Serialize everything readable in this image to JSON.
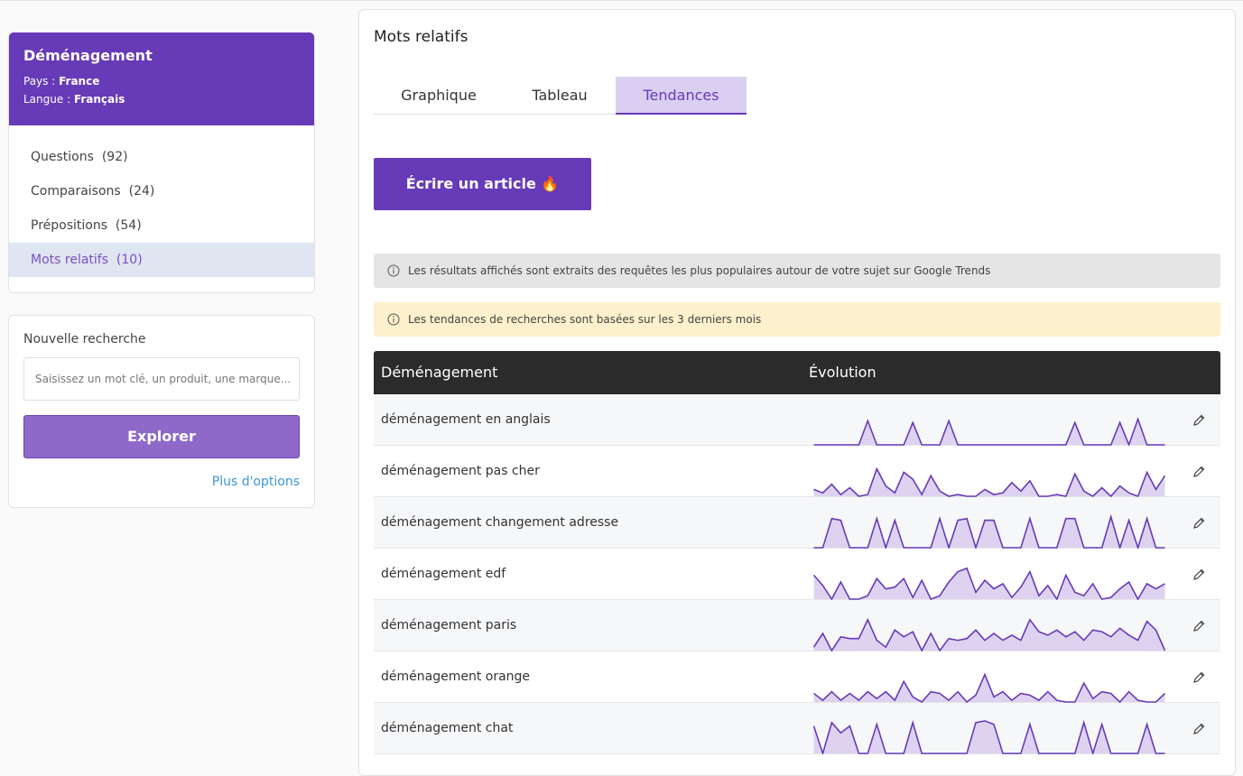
{
  "sidebar": {
    "title": "Déménagement",
    "country_label": "Pays :",
    "country": "France",
    "language_label": "Langue :",
    "language": "Français",
    "menu": [
      {
        "label": "Questions",
        "count": "(92)"
      },
      {
        "label": "Comparaisons",
        "count": "(24)"
      },
      {
        "label": "Prépositions",
        "count": "(54)"
      },
      {
        "label": "Mots relatifs",
        "count": "(10)"
      }
    ],
    "active_menu": 3
  },
  "search": {
    "title": "Nouvelle recherche",
    "placeholder": "Saisissez un mot clé, un produit, une marque...",
    "button": "Explorer",
    "link": "Plus d'options"
  },
  "main": {
    "title": "Mots relatifs",
    "tabs": [
      "Graphique",
      "Tableau",
      "Tendances"
    ],
    "active_tab": 2,
    "cta": "Écrire un article 🔥",
    "info": "Les résultats affichés sont extraits des requêtes les plus populaires autour de votre sujet sur Google Trends",
    "notice": "Les tendances de recherches sont basées sur les 3 derniers mois",
    "table": {
      "columns": [
        "Déménagement",
        "Évolution"
      ],
      "trend_ylim": [
        0,
        100
      ],
      "rows": [
        {
          "keyword": "déménagement en anglais",
          "trend": [
            0,
            0,
            0,
            0,
            0,
            0,
            70,
            0,
            0,
            0,
            0,
            65,
            0,
            0,
            0,
            70,
            0,
            0,
            0,
            0,
            0,
            0,
            0,
            0,
            0,
            0,
            0,
            0,
            0,
            65,
            0,
            0,
            0,
            0,
            65,
            0,
            75,
            0,
            0,
            0
          ]
        },
        {
          "keyword": "déménagement pas cher",
          "trend": [
            20,
            10,
            35,
            5,
            25,
            0,
            5,
            80,
            30,
            10,
            70,
            50,
            5,
            60,
            15,
            0,
            5,
            0,
            0,
            20,
            5,
            10,
            40,
            15,
            45,
            0,
            0,
            5,
            0,
            65,
            15,
            0,
            25,
            0,
            30,
            10,
            0,
            70,
            20,
            60
          ]
        },
        {
          "keyword": "déménagement changement adresse",
          "trend": [
            0,
            0,
            85,
            80,
            0,
            0,
            0,
            85,
            0,
            80,
            0,
            0,
            0,
            0,
            85,
            0,
            80,
            85,
            0,
            80,
            80,
            0,
            0,
            0,
            85,
            0,
            0,
            0,
            85,
            85,
            0,
            0,
            0,
            90,
            0,
            80,
            0,
            85,
            0,
            0
          ]
        },
        {
          "keyword": "déménagement edf",
          "trend": [
            70,
            40,
            0,
            50,
            0,
            0,
            10,
            60,
            30,
            35,
            60,
            5,
            55,
            0,
            10,
            50,
            80,
            90,
            20,
            55,
            30,
            45,
            5,
            35,
            80,
            10,
            40,
            0,
            70,
            20,
            10,
            45,
            0,
            5,
            30,
            50,
            0,
            45,
            30,
            45
          ]
        },
        {
          "keyword": "déménagement paris",
          "trend": [
            10,
            50,
            0,
            40,
            35,
            35,
            90,
            30,
            10,
            60,
            40,
            55,
            0,
            50,
            0,
            35,
            30,
            35,
            60,
            30,
            50,
            30,
            45,
            30,
            90,
            55,
            45,
            60,
            40,
            55,
            30,
            60,
            55,
            40,
            65,
            45,
            30,
            85,
            60,
            0
          ]
        },
        {
          "keyword": "déménagement orange",
          "trend": [
            25,
            5,
            30,
            5,
            25,
            5,
            30,
            10,
            30,
            5,
            60,
            15,
            0,
            30,
            25,
            5,
            30,
            0,
            20,
            80,
            15,
            30,
            5,
            25,
            20,
            5,
            30,
            5,
            0,
            0,
            55,
            10,
            30,
            25,
            0,
            30,
            5,
            0,
            0,
            25
          ]
        },
        {
          "keyword": "déménagement chat",
          "trend": [
            80,
            0,
            90,
            60,
            80,
            0,
            0,
            85,
            0,
            0,
            0,
            90,
            0,
            0,
            0,
            0,
            0,
            0,
            90,
            95,
            85,
            0,
            0,
            0,
            85,
            0,
            0,
            0,
            0,
            0,
            90,
            0,
            85,
            0,
            0,
            0,
            0,
            85,
            0,
            0
          ]
        }
      ]
    }
  }
}
